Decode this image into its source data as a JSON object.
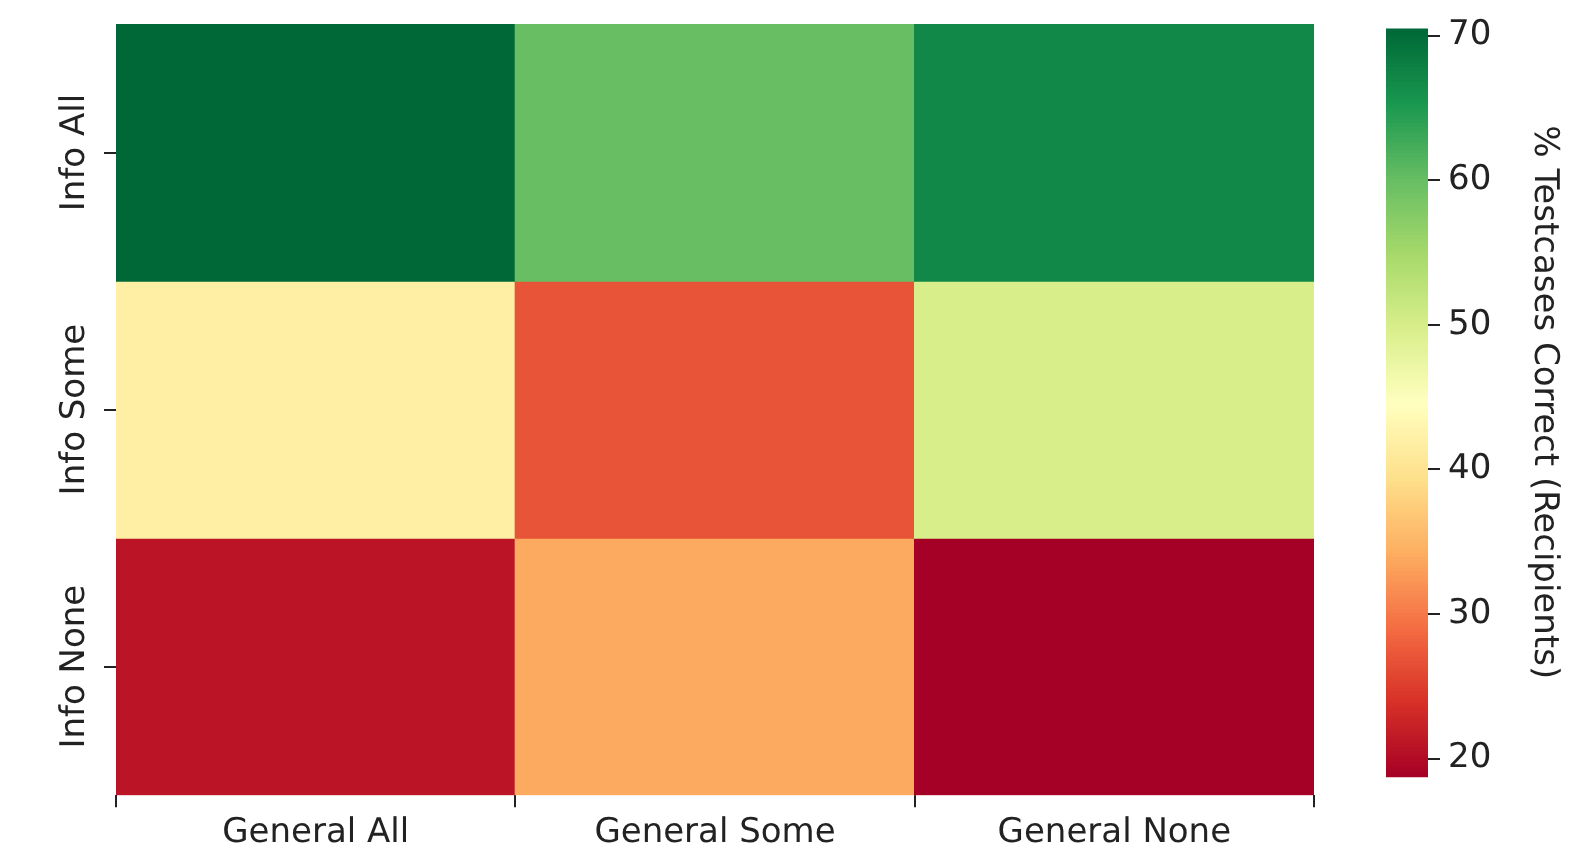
{
  "chart_data": {
    "type": "heatmap",
    "categories": [
      "General All",
      "General Some",
      "General None"
    ],
    "y_categories": [
      "Info All",
      "Info Some",
      "Info None"
    ],
    "cells": [
      [
        70.5,
        60,
        67
      ],
      [
        42,
        27,
        50
      ],
      [
        21,
        34,
        18.8
      ]
    ],
    "clabel": "% Testcases Correct (Recipients)",
    "clim": [
      18.8,
      70.5
    ],
    "cticks": [
      20,
      30,
      40,
      50,
      60,
      70
    ]
  }
}
